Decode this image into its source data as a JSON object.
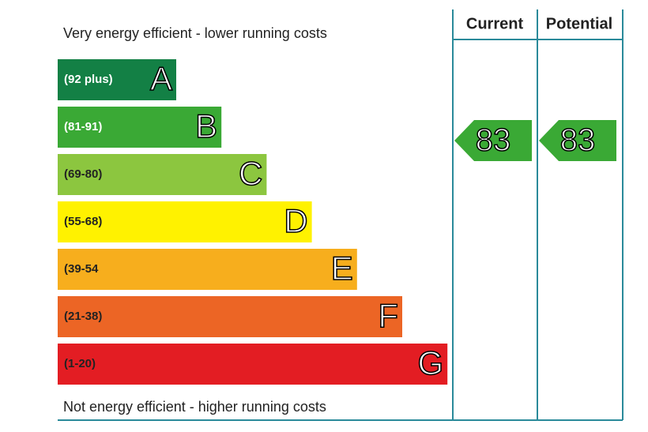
{
  "chart_data": {
    "type": "epc",
    "top_label": "Very energy efficient - lower running costs",
    "bottom_label": "Not energy efficient - higher running costs",
    "columns": [
      "Current",
      "Potential"
    ],
    "bands": [
      {
        "range": "(92 plus)",
        "letter": "A",
        "color": "#138045",
        "text_color": "#ffffff"
      },
      {
        "range": "(81-91)",
        "letter": "B",
        "color": "#3aa935",
        "text_color": "#ffffff"
      },
      {
        "range": "(69-80)",
        "letter": "C",
        "color": "#8cc63f",
        "text_color": "#222222"
      },
      {
        "range": "(55-68)",
        "letter": "D",
        "color": "#fff200",
        "text_color": "#222222"
      },
      {
        "range": "(39-54",
        "letter": "E",
        "color": "#f7ae1d",
        "text_color": "#222222"
      },
      {
        "range": "(21-38)",
        "letter": "F",
        "color": "#ec6525",
        "text_color": "#222222"
      },
      {
        "range": "(1-20)",
        "letter": "G",
        "color": "#e31d23",
        "text_color": "#222222"
      }
    ],
    "values": [
      83,
      83
    ],
    "value_color": "#3aa935"
  }
}
